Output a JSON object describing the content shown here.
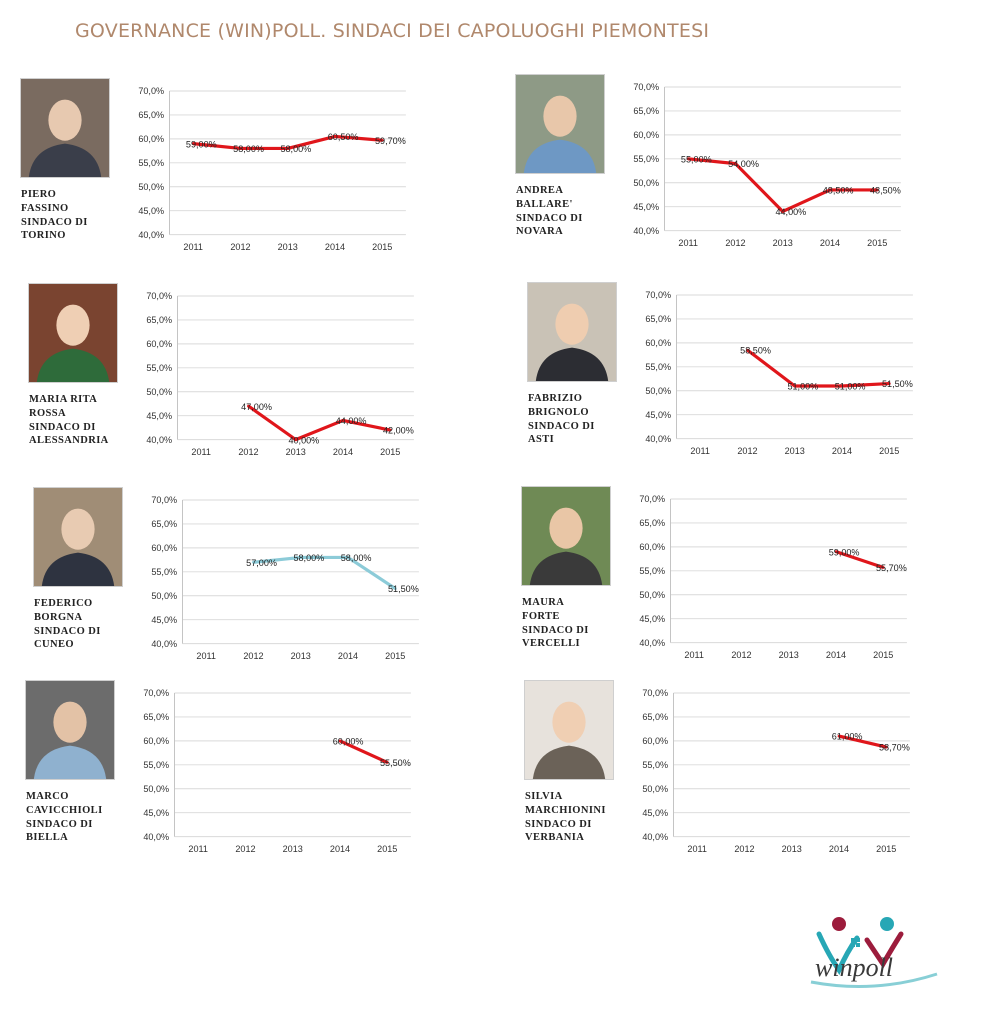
{
  "title": "GOVERNANCE (WIN)POLL. SINDACI DEI CAPOLUOGHI PIEMONTESI",
  "logo_text": "winpoll",
  "colors": {
    "title": "#b0886c",
    "line_red": "#e0161b",
    "line_blue": "#8ccbd8",
    "grid": "#d9d9d9"
  },
  "chart_data": [
    {
      "type": "line",
      "person": [
        "PIERO",
        "FASSINO",
        "SINDACO DI",
        "TORINO"
      ],
      "color": "#e0161b",
      "categories": [
        "2011",
        "2012",
        "2013",
        "2014",
        "2015"
      ],
      "values": [
        59.0,
        58.0,
        58.0,
        60.5,
        59.7
      ],
      "data_labels": [
        "59,00%",
        "58,00%",
        "58,00%",
        "60,50%",
        "59,70%"
      ],
      "ylim": [
        40,
        70
      ],
      "yticks": [
        "40,0%",
        "45,0%",
        "50,0%",
        "55,0%",
        "60,0%",
        "65,0%",
        "70,0%"
      ],
      "grid": true
    },
    {
      "type": "line",
      "person": [
        "ANDREA",
        "BALLARE'",
        "SINDACO DI",
        "NOVARA"
      ],
      "color": "#e0161b",
      "categories": [
        "2011",
        "2012",
        "2013",
        "2014",
        "2015"
      ],
      "values": [
        55.0,
        54.0,
        44.0,
        48.5,
        48.5
      ],
      "data_labels": [
        "55,00%",
        "54,00%",
        "44,00%",
        "48,50%",
        "48,50%"
      ],
      "ylim": [
        40,
        70
      ],
      "yticks": [
        "40,0%",
        "45,0%",
        "50,0%",
        "55,0%",
        "60,0%",
        "65,0%",
        "70,0%"
      ],
      "grid": true
    },
    {
      "type": "line",
      "person": [
        "MARIA RITA",
        "ROSSA",
        "SINDACO DI",
        "ALESSANDRIA"
      ],
      "color": "#e0161b",
      "categories": [
        "2011",
        "2012",
        "2013",
        "2014",
        "2015"
      ],
      "values": [
        null,
        47.0,
        40.0,
        44.0,
        42.0
      ],
      "data_labels": [
        null,
        "47,00%",
        "40,00%",
        "44,00%",
        "42,00%"
      ],
      "ylim": [
        40,
        70
      ],
      "yticks": [
        "40,0%",
        "45,0%",
        "50,0%",
        "55,0%",
        "60,0%",
        "65,0%",
        "70,0%"
      ],
      "grid": true
    },
    {
      "type": "line",
      "person": [
        "FABRIZIO",
        "BRIGNOLO",
        "SINDACO DI",
        "ASTI"
      ],
      "color": "#e0161b",
      "categories": [
        "2011",
        "2012",
        "2013",
        "2014",
        "2015"
      ],
      "values": [
        null,
        58.5,
        51.0,
        51.0,
        51.5
      ],
      "data_labels": [
        null,
        "58,50%",
        "51,00%",
        "51,00%",
        "51,50%"
      ],
      "ylim": [
        40,
        70
      ],
      "yticks": [
        "40,0%",
        "45,0%",
        "50,0%",
        "55,0%",
        "60,0%",
        "65,0%",
        "70,0%"
      ],
      "grid": true
    },
    {
      "type": "line",
      "person": [
        "FEDERICO",
        "BORGNA",
        "SINDACO DI",
        "CUNEO"
      ],
      "color": "#8ccbd8",
      "categories": [
        "2011",
        "2012",
        "2013",
        "2014",
        "2015"
      ],
      "values": [
        null,
        57.0,
        58.0,
        58.0,
        51.5
      ],
      "data_labels": [
        null,
        "57,00%",
        "58,00%",
        "58,00%",
        "51,50%"
      ],
      "ylim": [
        40,
        70
      ],
      "yticks": [
        "40,0%",
        "45,0%",
        "50,0%",
        "55,0%",
        "60,0%",
        "65,0%",
        "70,0%"
      ],
      "grid": true
    },
    {
      "type": "line",
      "person": [
        "MAURA",
        "FORTE",
        "SINDACO DI",
        "VERCELLI"
      ],
      "color": "#e0161b",
      "categories": [
        "2011",
        "2012",
        "2013",
        "2014",
        "2015"
      ],
      "values": [
        null,
        null,
        null,
        59.0,
        55.7
      ],
      "data_labels": [
        null,
        null,
        null,
        "59,00%",
        "55,70%"
      ],
      "ylim": [
        40,
        70
      ],
      "yticks": [
        "40,0%",
        "45,0%",
        "50,0%",
        "55,0%",
        "60,0%",
        "65,0%",
        "70,0%"
      ],
      "grid": true
    },
    {
      "type": "line",
      "person": [
        "MARCO",
        "CAVICCHIOLI",
        "SINDACO DI",
        "BIELLA"
      ],
      "color": "#e0161b",
      "categories": [
        "2011",
        "2012",
        "2013",
        "2014",
        "2015"
      ],
      "values": [
        null,
        null,
        null,
        60.0,
        55.5
      ],
      "data_labels": [
        null,
        null,
        null,
        "60,00%",
        "55,50%"
      ],
      "ylim": [
        40,
        70
      ],
      "yticks": [
        "40,0%",
        "45,0%",
        "50,0%",
        "55,0%",
        "60,0%",
        "65,0%",
        "70,0%"
      ],
      "grid": true
    },
    {
      "type": "line",
      "person": [
        "SILVIA",
        "MARCHIONINI",
        "SINDACO DI",
        "VERBANIA"
      ],
      "color": "#e0161b",
      "categories": [
        "2011",
        "2012",
        "2013",
        "2014",
        "2015"
      ],
      "values": [
        null,
        null,
        null,
        61.0,
        58.7
      ],
      "data_labels": [
        null,
        null,
        null,
        "61,00%",
        "58,70%"
      ],
      "ylim": [
        40,
        70
      ],
      "yticks": [
        "40,0%",
        "45,0%",
        "50,0%",
        "55,0%",
        "60,0%",
        "65,0%",
        "70,0%"
      ],
      "grid": true
    }
  ]
}
